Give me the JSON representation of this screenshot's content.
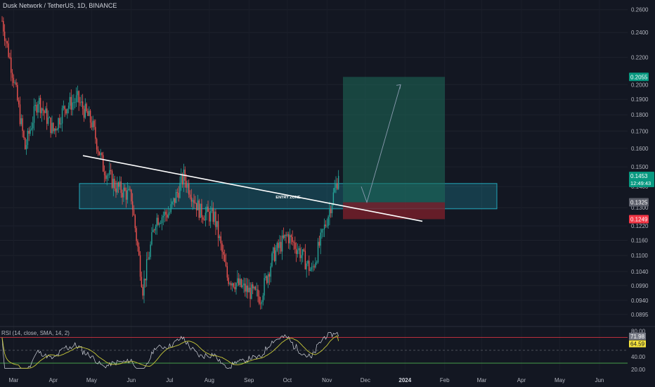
{
  "header": {
    "title": "Dusk Network / TetherUS, 1D, BINANCE",
    "rsi_title": "RSI (14, close, SMA, 14, 2)"
  },
  "colors": {
    "background": "#131722",
    "up": "#26a69a",
    "down": "#ef5350",
    "entry_zone": "#26c6da",
    "target_zone": "#1e6b5a",
    "stop_zone": "#7a1f2b",
    "rsi_line": "#d1d4dc",
    "rsi_ma": "#c9c93a",
    "trendline": "#ffffff"
  },
  "chart_data": [
    {
      "type": "candlestick",
      "symbol": "DUSKUSDT",
      "timeframe": "1D",
      "exchange": "BINANCE",
      "y_axis": {
        "scale": "log",
        "range": [
          0.0875,
          0.265
        ],
        "ticks": [
          "0.2600",
          "0.2400",
          "0.2200",
          "0.2000",
          "0.1900",
          "0.1800",
          "0.1700",
          "0.1600",
          "0.1500",
          "0.1400",
          "0.1300",
          "0.1220",
          "0.1160",
          "0.1100",
          "0.1040",
          "0.0990",
          "0.0940",
          "0.0895"
        ]
      },
      "x_axis": {
        "ticks": [
          "Mar",
          "Apr",
          "May",
          "Jun",
          "Jul",
          "Aug",
          "Sep",
          "Oct",
          "Nov",
          "Dec",
          "2024",
          "Feb",
          "Mar",
          "Apr",
          "May",
          "Jun"
        ]
      },
      "approx_close_path": [
        [
          "Feb 20",
          0.25
        ],
        [
          "Mar 1",
          0.205
        ],
        [
          "Mar 10",
          0.16
        ],
        [
          "Mar 20",
          0.19
        ],
        [
          "Apr 1",
          0.17
        ],
        [
          "Apr 10",
          0.185
        ],
        [
          "Apr 20",
          0.19
        ],
        [
          "May 1",
          0.175
        ],
        [
          "May 10",
          0.15
        ],
        [
          "May 20",
          0.14
        ],
        [
          "Jun 1",
          0.135
        ],
        [
          "Jun 10",
          0.098
        ],
        [
          "Jun 20",
          0.125
        ],
        [
          "Jul 1",
          0.128
        ],
        [
          "Jul 12",
          0.145
        ],
        [
          "Jul 25",
          0.128
        ],
        [
          "Aug 5",
          0.126
        ],
        [
          "Aug 15",
          0.102
        ],
        [
          "Aug 28",
          0.098
        ],
        [
          "Sep 10",
          0.095
        ],
        [
          "Sep 20",
          0.11
        ],
        [
          "Oct 1",
          0.118
        ],
        [
          "Oct 10",
          0.112
        ],
        [
          "Oct 20",
          0.104
        ],
        [
          "Nov 1",
          0.125
        ],
        [
          "Nov 10",
          0.1453
        ]
      ],
      "annotations": {
        "entry_zone_label": "ENTRY ZONE",
        "entry_zone_range": [
          0.1295,
          0.1415
        ],
        "target_price": 0.2055,
        "stop_price": 0.1249,
        "entry_price": 0.1325,
        "trendline": {
          "from": [
            "Apr 22",
            0.156
          ],
          "to": [
            "Dec 5",
            0.124
          ]
        }
      },
      "price_labels": {
        "target": "0.2055",
        "current": "0.1453",
        "countdown": "12:49:43",
        "entry": "0.1325",
        "stop": "0.1249"
      }
    },
    {
      "type": "line",
      "name": "RSI (14, close, SMA, 14, 2)",
      "y_axis": {
        "range": [
          18,
          85
        ],
        "ticks": [
          "80.00",
          "60.00",
          "40.00",
          "20.00"
        ]
      },
      "levels": {
        "upper": 70,
        "middle": 50,
        "lower": 30
      },
      "series": [
        {
          "name": "RSI",
          "last": 71.98
        },
        {
          "name": "RSI-based MA",
          "last": 64.59
        }
      ],
      "labels": {
        "rsi": "71.98",
        "ma": "64.59"
      }
    }
  ]
}
